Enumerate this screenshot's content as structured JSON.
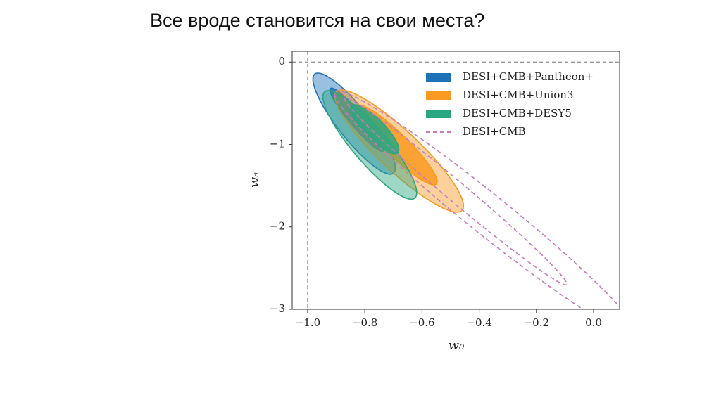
{
  "slide_title": "Все вроде становится на свои места?",
  "chart_data": {
    "type": "contour",
    "xlabel": "w₀",
    "ylabel": "wₐ",
    "xlim": [
      -1.054,
      0.091
    ],
    "ylim": [
      -3,
      0.13
    ],
    "xticks": [
      {
        "value": -1,
        "label": "−1.0"
      },
      {
        "value": -0.8,
        "label": "−0.8"
      },
      {
        "value": -0.6,
        "label": "−0.6"
      },
      {
        "value": -0.4,
        "label": "−0.4"
      },
      {
        "value": -0.2,
        "label": "−0.2"
      },
      {
        "value": 0,
        "label": "0.0"
      }
    ],
    "yticks": [
      0,
      {
        "value": -1,
        "label": "−1"
      },
      {
        "value": -2,
        "label": "−2"
      },
      {
        "value": -3,
        "label": "−3"
      }
    ],
    "reference_lines": {
      "x": -1,
      "y": 0
    },
    "legend": "upper right",
    "series": [
      {
        "name": "DESI+CMB+Pantheon+",
        "color": "#1f72b8",
        "filled": true,
        "dashed": false,
        "contours": [
          {
            "x": [
              -0.975,
              -0.7
            ],
            "values": [
              -0.145,
              -1.35
            ],
            "width": 0.055
          },
          {
            "x": [
              -0.92,
              -0.735
            ],
            "values": [
              -0.32,
              -1.08
            ],
            "width": 0.025
          }
        ]
      },
      {
        "name": "DESI+CMB+Union3",
        "color": "#f99a22",
        "filled": true,
        "dashed": false,
        "contours": [
          {
            "x": [
              -0.9,
              -0.46
            ],
            "values": [
              -0.36,
              -1.8
            ],
            "width": 0.07
          },
          {
            "x": [
              -0.83,
              -0.55
            ],
            "values": [
              -0.53,
              -1.48
            ],
            "width": 0.04
          }
        ]
      },
      {
        "name": "DESI+CMB+DESY5",
        "color": "#2aa681",
        "filled": true,
        "dashed": false,
        "contours": [
          {
            "x": [
              -0.94,
              -0.625
            ],
            "values": [
              -0.36,
              -1.65
            ],
            "width": 0.06
          },
          {
            "x": [
              -0.845,
              -0.685
            ],
            "values": [
              -0.53,
              -1.1
            ],
            "width": 0.035
          }
        ]
      },
      {
        "name": "DESI+CMB",
        "color": "#cc79c0",
        "filled": false,
        "dashed": true,
        "contours": [
          {
            "x": [
              -0.905,
              0.15
            ],
            "values": [
              -0.36,
              -3.3
            ],
            "width": 0.07
          },
          {
            "x": [
              -0.87,
              -0.094
            ],
            "values": [
              -0.44,
              -2.7
            ],
            "width": 0.035
          }
        ]
      }
    ]
  }
}
